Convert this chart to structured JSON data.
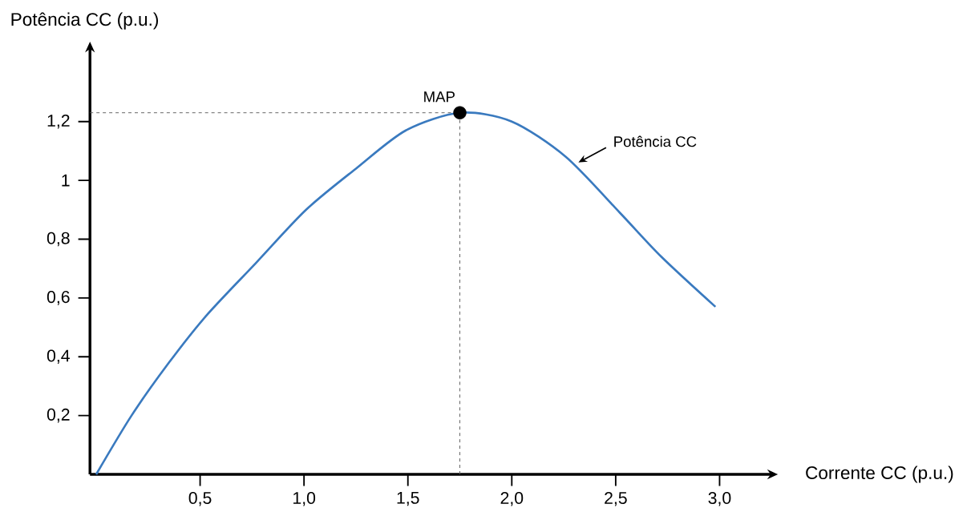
{
  "chart_data": {
    "type": "line",
    "xlabel": "Corrente CC (p.u.)",
    "ylabel": "Potência CC (p.u.)",
    "xlim": [
      -0.03,
      3.25
    ],
    "ylim": [
      0,
      1.45
    ],
    "xticks": [
      {
        "value": 0.5,
        "label": "0,5"
      },
      {
        "value": 1.0,
        "label": "1,0"
      },
      {
        "value": 1.5,
        "label": "1,5"
      },
      {
        "value": 2.0,
        "label": "2,0"
      },
      {
        "value": 2.5,
        "label": "2,5"
      },
      {
        "value": 3.0,
        "label": "3,0"
      }
    ],
    "yticks": [
      {
        "value": 0.2,
        "label": "0,2"
      },
      {
        "value": 0.4,
        "label": "0,4"
      },
      {
        "value": 0.6,
        "label": "0,6"
      },
      {
        "value": 0.8,
        "label": "0,8"
      },
      1,
      {
        "value": 1.2,
        "label": "1,2"
      }
    ],
    "series": [
      {
        "type": "line",
        "color": "#3a7abf",
        "marker": "none",
        "line_style": "solid",
        "x": [
          0,
          0.17,
          0.35,
          0.53,
          0.77,
          1.01,
          1.25,
          1.49,
          1.75,
          2.0,
          2.26,
          2.52,
          2.72,
          2.98
        ],
        "values": [
          0,
          0.2,
          0.38,
          0.54,
          0.72,
          0.9,
          1.04,
          1.17,
          1.23,
          1.2,
          1.08,
          0.89,
          0.74,
          0.57
        ]
      },
      {
        "type": "scatter",
        "color": "#000000",
        "marker": "circle",
        "x": [
          1.75
        ],
        "values": [
          1.23
        ]
      }
    ],
    "ref_lines": [
      {
        "axis": "x",
        "value": 1.75,
        "color": "#595959",
        "line_style": "dashed"
      },
      {
        "axis": "y",
        "value": 1.23,
        "color": "#595959",
        "line_style": "dashed"
      }
    ],
    "annotations": [
      {
        "text": "MAP",
        "x": 1.75,
        "y": 1.23
      },
      {
        "text": "Potência CC",
        "x": 2.3,
        "y": 1.05
      }
    ]
  }
}
